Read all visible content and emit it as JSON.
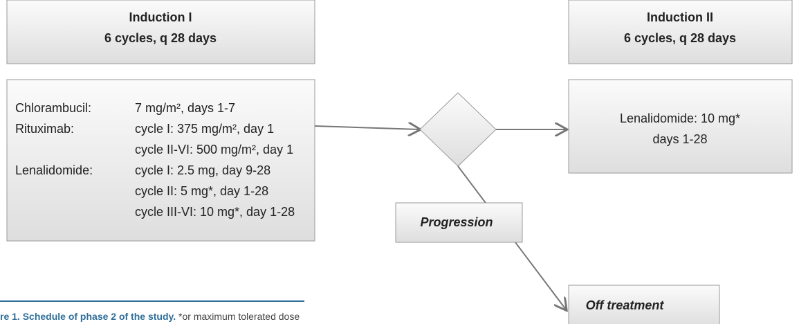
{
  "induction_1": {
    "title": "Induction I",
    "subtitle": "6 cycles, q 28 days"
  },
  "induction_2": {
    "title": "Induction II",
    "subtitle": "6 cycles, q 28 days"
  },
  "regimen": [
    {
      "drug": "Chlorambucil:",
      "doses": [
        "7 mg/m², days 1-7"
      ]
    },
    {
      "drug": "Rituximab:",
      "doses": [
        "cycle I: 375 mg/m², day 1",
        "cycle II-VI: 500 mg/m², day 1"
      ]
    },
    {
      "drug": "Lenalidomide:",
      "doses": [
        "cycle I: 2.5 mg, day 9-28",
        "cycle II: 5 mg*, day 1-28",
        "cycle III-VI: 10 mg*, day 1-28"
      ]
    }
  ],
  "maintenance": {
    "line_1": "Lenalidomide: 10 mg*",
    "line_2": "days 1-28"
  },
  "progression": "Progression",
  "off_treatment": "Off treatment",
  "caption": {
    "title": "re 1. Schedule of phase 2 of the study.",
    "note": "*or maximum tolerated dose"
  }
}
